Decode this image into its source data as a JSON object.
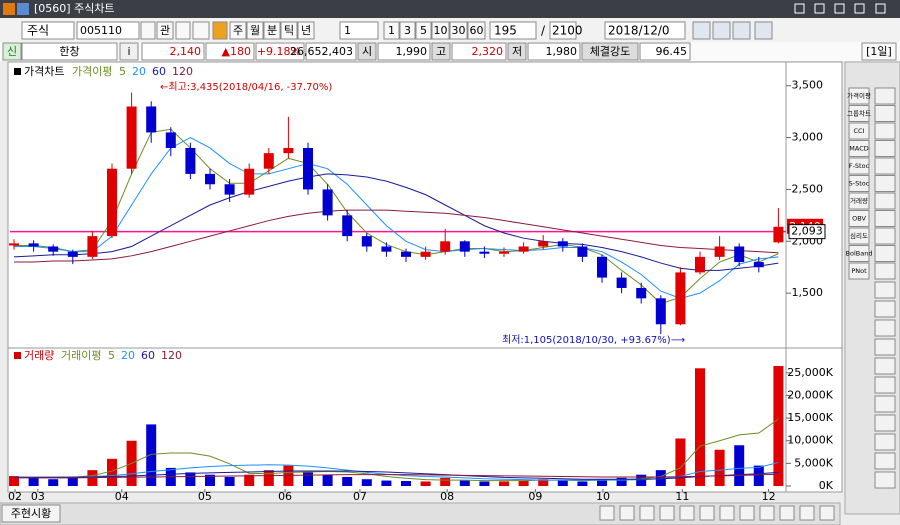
{
  "window": {
    "title": "[0560] 주식차트"
  },
  "toolbar": {
    "market": "주식",
    "code": "005110",
    "watch": "관",
    "periods": [
      "주",
      "월",
      "분",
      "틱",
      "년"
    ],
    "interval": "1",
    "minutes": [
      "1",
      "3",
      "5",
      "10",
      "30",
      "60"
    ],
    "count": "195",
    "separator": "/",
    "total": "2100",
    "date": "2018/12/0"
  },
  "quote": {
    "tag": "신",
    "name": "한창",
    "info": "i",
    "price": "2,140",
    "change": "▲180",
    "rate": "+9.18%",
    "volume": "26,652,403",
    "open_label": "시",
    "open": "1,990",
    "high_label": "고",
    "high": "2,320",
    "low_label": "저",
    "low": "1,980",
    "strength_label": "체결강도",
    "strength": "96.45",
    "period": "[1일]"
  },
  "price_chart": {
    "type": "candlestick",
    "legend_title": "가격차트",
    "ma_title": "가격이평",
    "open": [
      1960,
      1980,
      1950,
      1900,
      1850,
      2050,
      2700,
      3300,
      3050,
      2900,
      2650,
      2550,
      2450,
      2700,
      2850,
      2900,
      2500,
      2250,
      2050,
      1950,
      1900,
      1850,
      1900,
      2000,
      1900,
      1880,
      1900,
      1950,
      2000,
      1950,
      1850,
      1650,
      1550,
      1450,
      1200,
      1700,
      1850,
      1950,
      1800,
      1990
    ],
    "high": [
      2020,
      2010,
      1970,
      1920,
      2100,
      2750,
      3435,
      3350,
      3100,
      2950,
      2700,
      2600,
      2750,
      2900,
      3200,
      2950,
      2550,
      2300,
      2080,
      1990,
      1930,
      1950,
      2120,
      2010,
      1950,
      1940,
      1990,
      2060,
      2030,
      1980,
      1870,
      1700,
      1600,
      1480,
      1750,
      1900,
      2050,
      1980,
      1850,
      2320
    ],
    "low": [
      1920,
      1900,
      1860,
      1780,
      1830,
      2030,
      2650,
      2950,
      2820,
      2600,
      2500,
      2380,
      2420,
      2650,
      2800,
      2450,
      2200,
      2000,
      1900,
      1850,
      1800,
      1820,
      1870,
      1850,
      1840,
      1850,
      1880,
      1920,
      1900,
      1800,
      1600,
      1500,
      1400,
      1105,
      1190,
      1680,
      1820,
      1760,
      1700,
      1980
    ],
    "close": [
      1980,
      1950,
      1900,
      1850,
      2050,
      2700,
      3300,
      3050,
      2900,
      2650,
      2550,
      2450,
      2700,
      2850,
      2900,
      2500,
      2250,
      2050,
      1950,
      1900,
      1850,
      1900,
      2000,
      1900,
      1880,
      1900,
      1950,
      2000,
      1950,
      1850,
      1650,
      1550,
      1450,
      1200,
      1700,
      1850,
      1950,
      1800,
      1750,
      2140
    ],
    "series": [
      {
        "name": "5",
        "color": "#6b8e23",
        "values": [
          1960,
          1960,
          1940,
          1900,
          1920,
          2200,
          2650,
          3050,
          3080,
          2900,
          2700,
          2560,
          2560,
          2680,
          2800,
          2750,
          2550,
          2280,
          2080,
          1970,
          1900,
          1870,
          1900,
          1930,
          1930,
          1900,
          1910,
          1940,
          1970,
          1940,
          1870,
          1720,
          1580,
          1400,
          1460,
          1640,
          1800,
          1870,
          1800,
          1880
        ]
      },
      {
        "name": "20",
        "color": "#1e90ff",
        "values": [
          1950,
          1950,
          1930,
          1900,
          1900,
          2050,
          2350,
          2650,
          2900,
          3000,
          2900,
          2750,
          2650,
          2650,
          2700,
          2750,
          2700,
          2550,
          2350,
          2150,
          2000,
          1920,
          1900,
          1920,
          1930,
          1920,
          1910,
          1920,
          1940,
          1940,
          1900,
          1800,
          1680,
          1520,
          1450,
          1500,
          1620,
          1780,
          1830,
          1850
        ]
      },
      {
        "name": "60",
        "color": "#1a1a9a",
        "values": [
          1850,
          1860,
          1870,
          1870,
          1880,
          1900,
          1950,
          2050,
          2150,
          2250,
          2350,
          2420,
          2480,
          2530,
          2580,
          2620,
          2650,
          2640,
          2620,
          2580,
          2520,
          2450,
          2350,
          2250,
          2150,
          2080,
          2030,
          2000,
          1980,
          1970,
          1940,
          1900,
          1850,
          1790,
          1740,
          1720,
          1720,
          1740,
          1760,
          1790
        ]
      },
      {
        "name": "120",
        "color": "#8b1a3a",
        "values": [
          1800,
          1800,
          1810,
          1810,
          1820,
          1830,
          1860,
          1900,
          1950,
          2000,
          2050,
          2100,
          2150,
          2200,
          2240,
          2270,
          2290,
          2300,
          2300,
          2300,
          2290,
          2280,
          2270,
          2250,
          2230,
          2200,
          2170,
          2140,
          2110,
          2080,
          2050,
          2020,
          1990,
          1960,
          1940,
          1930,
          1920,
          1910,
          1900,
          1890
        ]
      }
    ],
    "ylim": [
      1000,
      3700
    ],
    "yticks": [
      {
        "value": 1500,
        "label": "1,500"
      },
      {
        "value": 2000,
        "label": "2,000"
      },
      {
        "value": 2500,
        "label": "2,500"
      },
      {
        "value": 3000,
        "label": "3,000"
      },
      {
        "value": 3500,
        "label": "3,500"
      }
    ],
    "up_color": "#e00000",
    "down_color": "#0000d0",
    "hline": {
      "value": 2093,
      "label": "2,093",
      "color": "#ff1493"
    },
    "annotations": [
      {
        "text": "←최고:3,435(2018/04/16, -37.70%)",
        "color": "#d00000"
      },
      {
        "text": "최저:1,105(2018/10/30, +93.67%)⟶",
        "color": "#1010c0"
      }
    ]
  },
  "volume_chart": {
    "type": "bar",
    "legend_title": "거래량",
    "ma_title": "거래이평",
    "values": [
      2200,
      1800,
      1500,
      2000,
      3500,
      6000,
      10000,
      13600,
      4000,
      3000,
      2500,
      2000,
      2500,
      3500,
      4500,
      3000,
      2500,
      2000,
      1500,
      1200,
      1100,
      1000,
      1800,
      1200,
      1000,
      1000,
      1200,
      1500,
      1200,
      1000,
      1500,
      1800,
      2500,
      3500,
      10500,
      26000,
      8000,
      9000,
      4500,
      26500
    ],
    "series": [
      {
        "name": "5",
        "color": "#6b8e23",
        "values": [
          2000,
          1900,
          1800,
          1900,
          2300,
          3300,
          5000,
          7000,
          7300,
          7300,
          6600,
          4900,
          2800,
          2700,
          3000,
          3100,
          3200,
          3100,
          2700,
          2100,
          1700,
          1400,
          1300,
          1300,
          1200,
          1200,
          1200,
          1300,
          1300,
          1200,
          1300,
          1400,
          1600,
          2100,
          4000,
          8800,
          10000,
          11300,
          11700,
          14800
        ]
      },
      {
        "name": "20",
        "color": "#1e90ff",
        "values": [
          2000,
          2000,
          2000,
          2000,
          2100,
          2300,
          2700,
          3200,
          3600,
          4000,
          4300,
          4500,
          4600,
          4700,
          4600,
          4400,
          4000,
          3500,
          3000,
          2600,
          2300,
          2100,
          2000,
          1800,
          1600,
          1500,
          1400,
          1300,
          1300,
          1300,
          1300,
          1300,
          1400,
          1600,
          2100,
          3200,
          3500,
          3900,
          4100,
          5200
        ]
      },
      {
        "name": "60",
        "color": "#1a1a9a",
        "values": [
          1900,
          1900,
          1900,
          1950,
          2000,
          2100,
          2200,
          2400,
          2600,
          2800,
          2900,
          3000,
          3100,
          3200,
          3300,
          3300,
          3300,
          3300,
          3200,
          3100,
          2900,
          2700,
          2500,
          2300,
          2100,
          1900,
          1800,
          1700,
          1600,
          1500,
          1500,
          1500,
          1500,
          1600,
          1800,
          2100,
          2300,
          2500,
          2700,
          3000
        ]
      },
      {
        "name": "120",
        "color": "#8b1a3a",
        "values": [
          1800,
          1800,
          1800,
          1800,
          1850,
          1900,
          1950,
          2000,
          2050,
          2100,
          2150,
          2200,
          2250,
          2300,
          2350,
          2400,
          2450,
          2500,
          2500,
          2500,
          2500,
          2450,
          2400,
          2350,
          2300,
          2250,
          2200,
          2150,
          2100,
          2050,
          2000,
          2000,
          2000,
          2000,
          2050,
          2150,
          2250,
          2350,
          2450,
          2600
        ]
      }
    ],
    "ylim": [
      0,
      29600
    ],
    "yticks": [
      {
        "value": 0,
        "label": "0K"
      },
      {
        "value": 5000,
        "label": "5,000K"
      },
      {
        "value": 10000,
        "label": "10,000K"
      },
      {
        "value": 15000,
        "label": "15,000K"
      },
      {
        "value": 20000,
        "label": "20,000K"
      },
      {
        "value": 25000,
        "label": "25,000K"
      }
    ],
    "xticks": [
      {
        "value": 0.05,
        "label": "02"
      },
      {
        "value": 1.22,
        "label": "03"
      },
      {
        "value": 5.5,
        "label": "04"
      },
      {
        "value": 9.74,
        "label": "05"
      },
      {
        "value": 13.83,
        "label": "06"
      },
      {
        "value": 17.65,
        "label": "07"
      },
      {
        "value": 22.1,
        "label": "08"
      },
      {
        "value": 26.6,
        "label": "09"
      },
      {
        "value": 30.05,
        "label": "10"
      },
      {
        "value": 34.1,
        "label": "11"
      },
      {
        "value": 38.5,
        "label": "12"
      }
    ]
  },
  "side_tools": [
    "가격이평",
    "그룹차트",
    "CCI",
    "MACD",
    "F-Stoc",
    "S-Stoc",
    "거래량",
    "OBV",
    "심리도",
    "BolBand",
    "PNot"
  ],
  "bottom_tab": "주현시황"
}
